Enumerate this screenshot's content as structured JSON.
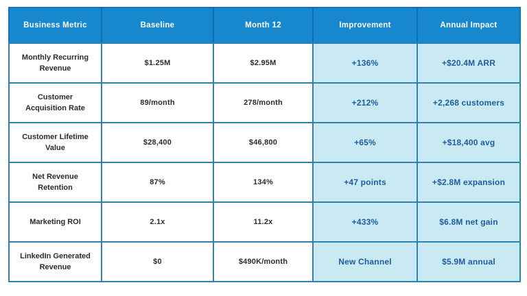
{
  "table": {
    "headers": {
      "metric": "Business Metric",
      "baseline": "Baseline",
      "month12": "Month 12",
      "improvement": "Improvement",
      "impact": "Annual Impact"
    },
    "rows": [
      {
        "metric": "Monthly Recurring Revenue",
        "baseline": "$1.25M",
        "month12": "$2.95M",
        "improvement": "+136%",
        "impact": "+$20.4M ARR"
      },
      {
        "metric": "Customer Acquisition Rate",
        "baseline": "89/month",
        "month12": "278/month",
        "improvement": "+212%",
        "impact": "+2,268 customers"
      },
      {
        "metric": "Customer Lifetime Value",
        "baseline": "$28,400",
        "month12": "$46,800",
        "improvement": "+65%",
        "impact": "+$18,400 avg"
      },
      {
        "metric": "Net Revenue Retention",
        "baseline": "87%",
        "month12": "134%",
        "improvement": "+47 points",
        "impact": "+$2.8M expansion"
      },
      {
        "metric": "Marketing ROI",
        "baseline": "2.1x",
        "month12": "11.2x",
        "improvement": "+433%",
        "impact": "$6.8M net gain"
      },
      {
        "metric": "LinkedIn Generated Revenue",
        "baseline": "$0",
        "month12": "$490K/month",
        "improvement": "New Channel",
        "impact": "$5.9M annual"
      }
    ]
  },
  "colors": {
    "header_bg": "#1788ce",
    "highlight_bg": "#c9eaf2",
    "highlight_text": "#1d5c9e",
    "border": "#2f82ae",
    "body_text": "#2b2b2b"
  }
}
